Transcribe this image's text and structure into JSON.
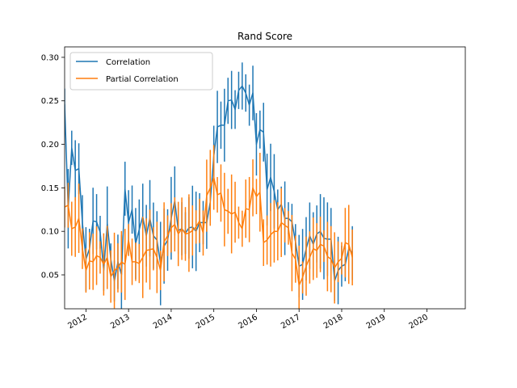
{
  "chart_data": {
    "type": "line",
    "title": "Rand Score",
    "xlabel": "",
    "ylabel": "",
    "xlim": [
      2011.5,
      2020.9
    ],
    "ylim": [
      0.011,
      0.312
    ],
    "x_ticks": [
      "2012",
      "2013",
      "2014",
      "2015",
      "2016",
      "2017",
      "2018",
      "2019",
      "2020"
    ],
    "x_tick_values": [
      2012,
      2013,
      2014,
      2015,
      2016,
      2017,
      2018,
      2019,
      2020
    ],
    "y_ticks": [
      "0.05",
      "0.10",
      "0.15",
      "0.20",
      "0.25",
      "0.30"
    ],
    "y_tick_values": [
      0.05,
      0.1,
      0.15,
      0.2,
      0.25,
      0.3
    ],
    "grid": false,
    "legend_position": "top-left",
    "x_start": 2011.5,
    "x_step": 0.08333,
    "series": [
      {
        "name": "Correlation",
        "color": "#1f77b4",
        "values": [
          0.246,
          0.126,
          0.196,
          0.17,
          0.172,
          0.11,
          0.068,
          0.08,
          0.112,
          0.111,
          0.099,
          0.055,
          0.109,
          0.068,
          0.043,
          0.065,
          0.05,
          0.149,
          0.11,
          0.125,
          0.086,
          0.102,
          0.117,
          0.095,
          0.115,
          0.095,
          0.09,
          0.063,
          0.083,
          0.09,
          0.115,
          0.135,
          0.101,
          0.103,
          0.098,
          0.104,
          0.105,
          0.1,
          0.11,
          0.11,
          0.11,
          0.134,
          0.187,
          0.22,
          0.222,
          0.222,
          0.25,
          0.251,
          0.24,
          0.262,
          0.267,
          0.259,
          0.245,
          0.259,
          0.2,
          0.217,
          0.214,
          0.148,
          0.162,
          0.146,
          0.125,
          0.131,
          0.115,
          0.115,
          0.111,
          0.088,
          0.06,
          0.062,
          0.08,
          0.095,
          0.085,
          0.097,
          0.1,
          0.092,
          0.091,
          0.091,
          0.043,
          0.055,
          0.06,
          0.062,
          0.08,
          0.075
        ]
      },
      {
        "name": "Partial Correlation",
        "color": "#ff7f0e",
        "values": [
          0.128,
          0.13,
          0.103,
          0.105,
          0.115,
          0.08,
          0.055,
          0.066,
          0.065,
          0.072,
          0.07,
          0.062,
          0.07,
          0.048,
          0.055,
          0.058,
          0.065,
          0.062,
          0.09,
          0.065,
          0.065,
          0.063,
          0.07,
          0.078,
          0.079,
          0.08,
          0.07,
          0.055,
          0.088,
          0.095,
          0.104,
          0.108,
          0.097,
          0.103,
          0.097,
          0.098,
          0.101,
          0.105,
          0.112,
          0.098,
          0.141,
          0.15,
          0.162,
          0.142,
          0.144,
          0.125,
          0.123,
          0.12,
          0.122,
          0.11,
          0.103,
          0.126,
          0.125,
          0.15,
          0.14,
          0.145,
          0.087,
          0.09,
          0.096,
          0.1,
          0.1,
          0.11,
          0.107,
          0.104,
          0.075,
          0.068,
          0.038,
          0.047,
          0.06,
          0.07,
          0.08,
          0.078,
          0.085,
          0.083,
          0.071,
          0.068,
          0.058,
          0.065,
          0.069,
          0.087,
          0.085,
          0.07
        ]
      }
    ]
  }
}
